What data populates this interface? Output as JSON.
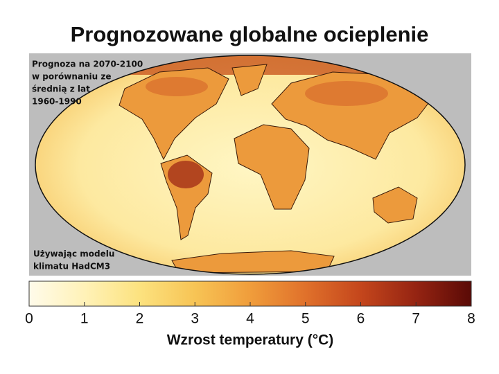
{
  "title": "Prognozowane globalne ocieplenie",
  "map": {
    "note": [
      "Prognoza na 2070-2100",
      "w porównaniu ze",
      "średnią z lat",
      "1960-1990"
    ],
    "model_note": [
      "Używając modelu",
      "klimatu HadCM3"
    ]
  },
  "colorbar": {
    "ticks": [
      0,
      1,
      2,
      3,
      4,
      5,
      6,
      7,
      8
    ],
    "colors": [
      "#fffbea",
      "#fff2b8",
      "#fce27f",
      "#f7c455",
      "#f09d3b",
      "#e0712b",
      "#c4461c",
      "#952412",
      "#5a0a06"
    ],
    "label": "Wzrost temperatury (°C)"
  }
}
